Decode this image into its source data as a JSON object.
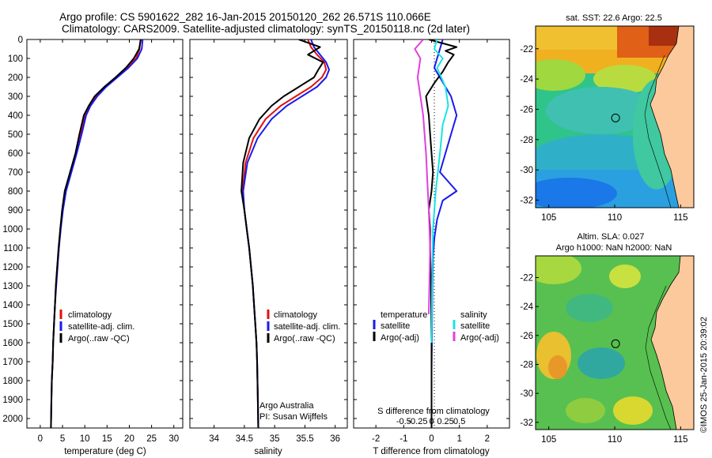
{
  "header": {
    "line1": "Argo profile: CS 5901622_282 16-Jan-2015 20150120_262 26.571S 110.066E",
    "line2": "Climatology: CARS2009. Satellite-adjusted climatology: synTS_20150118.nc (2d later)"
  },
  "footer": {
    "credit_line1": "Argo Australia",
    "credit_line2": "PI: Susan Wijffels",
    "side_stamp": "©IMOS 25-Jan-2015 20:39:02"
  },
  "colors": {
    "climatology": "#e01010",
    "satellite": "#1a1aee",
    "argo": "#000000",
    "salinity_satellite": "#18e4e4",
    "salinity_argo": "#e040e0"
  },
  "chart_data": [
    {
      "type": "line",
      "xlabel": "temperature (deg C)",
      "ylabel": "",
      "xlim": [
        -3,
        32
      ],
      "ylim": [
        2050,
        0
      ],
      "xticks": [
        0,
        5,
        10,
        15,
        20,
        25,
        30
      ],
      "yticks": [
        0,
        100,
        200,
        300,
        400,
        500,
        600,
        700,
        800,
        900,
        1000,
        1100,
        1200,
        1300,
        1400,
        1500,
        1600,
        1700,
        1800,
        1900,
        2000
      ],
      "legend": [
        "climatology",
        "satellite-adj. clim.",
        "Argo(..raw -QC)"
      ],
      "legend_position": "lower-left",
      "series": [
        {
          "name": "climatology",
          "color": "#e01010",
          "x": [
            22.5,
            22.3,
            21.5,
            19.5,
            17.0,
            14.5,
            12.5,
            11.0,
            10.0,
            9.0,
            8.0,
            6.8,
            5.7,
            5.0,
            4.5,
            4.2,
            3.8,
            3.5,
            3.3,
            3.1,
            2.9,
            2.8,
            2.6,
            2.5,
            2.4
          ],
          "y": [
            0,
            50,
            100,
            150,
            200,
            250,
            300,
            350,
            400,
            500,
            600,
            700,
            800,
            900,
            1000,
            1100,
            1200,
            1300,
            1400,
            1500,
            1600,
            1700,
            1800,
            1900,
            2050
          ]
        },
        {
          "name": "satellite-adj. clim.",
          "color": "#1a1aee",
          "x": [
            23.0,
            22.8,
            21.8,
            19.8,
            17.3,
            14.8,
            12.8,
            11.3,
            10.3,
            9.3,
            8.2,
            7.0,
            5.8,
            5.1,
            4.6,
            4.2,
            3.9,
            3.6,
            3.3,
            3.1,
            2.9,
            2.8,
            2.6,
            2.5,
            2.4
          ],
          "y": [
            0,
            50,
            100,
            150,
            200,
            250,
            300,
            350,
            400,
            500,
            600,
            700,
            800,
            900,
            1000,
            1100,
            1200,
            1300,
            1400,
            1500,
            1600,
            1700,
            1800,
            1900,
            2050
          ]
        },
        {
          "name": "Argo(..raw -QC)",
          "color": "#000000",
          "x": [
            22.6,
            22.2,
            21.0,
            19.2,
            16.9,
            14.4,
            12.2,
            10.9,
            9.8,
            8.8,
            7.9,
            6.7,
            5.5,
            4.9,
            4.5,
            4.1,
            3.8,
            3.5,
            3.3,
            3.1,
            2.9,
            2.8,
            2.6,
            2.5,
            2.4
          ],
          "y": [
            0,
            50,
            100,
            150,
            200,
            250,
            300,
            350,
            400,
            500,
            600,
            700,
            800,
            900,
            1000,
            1100,
            1200,
            1300,
            1400,
            1500,
            1600,
            1700,
            1800,
            1900,
            2050
          ]
        }
      ]
    },
    {
      "type": "line",
      "xlabel": "salinity",
      "xlim": [
        33.6,
        36.2
      ],
      "ylim": [
        2050,
        0
      ],
      "xticks": [
        34,
        34.5,
        35,
        35.5,
        36
      ],
      "legend": [
        "climatology",
        "satellite-adj. clim.",
        "Argo(..raw -QC)"
      ],
      "legend_position": "lower-right",
      "series": [
        {
          "name": "climatology",
          "color": "#e01010",
          "x": [
            35.55,
            35.6,
            35.7,
            35.82,
            35.85,
            35.78,
            35.6,
            35.35,
            35.1,
            34.85,
            34.65,
            34.52,
            34.47,
            34.5,
            34.54,
            34.58,
            34.61,
            34.64,
            34.66,
            34.68,
            34.7,
            34.71,
            34.72,
            34.73
          ],
          "y": [
            0,
            40,
            80,
            120,
            160,
            200,
            250,
            300,
            350,
            420,
            520,
            650,
            800,
            900,
            1000,
            1100,
            1200,
            1300,
            1400,
            1500,
            1600,
            1700,
            1850,
            2050
          ]
        },
        {
          "name": "satellite-adj. clim.",
          "color": "#1a1aee",
          "x": [
            35.6,
            35.65,
            35.75,
            35.85,
            35.9,
            35.85,
            35.7,
            35.45,
            35.2,
            34.95,
            34.72,
            34.55,
            34.48,
            34.5,
            34.54,
            34.58,
            34.61,
            34.64,
            34.66,
            34.68,
            34.7,
            34.71,
            34.72,
            34.73
          ],
          "y": [
            0,
            40,
            80,
            120,
            160,
            200,
            250,
            300,
            350,
            420,
            520,
            650,
            800,
            900,
            1000,
            1100,
            1200,
            1300,
            1400,
            1500,
            1600,
            1700,
            1850,
            2050
          ]
        },
        {
          "name": "Argo(..raw -QC)",
          "color": "#000000",
          "x": [
            35.4,
            35.75,
            35.55,
            35.8,
            35.72,
            35.65,
            35.4,
            35.15,
            34.95,
            34.75,
            34.58,
            34.48,
            34.45,
            34.5,
            34.54,
            34.58,
            34.61,
            34.64,
            34.66,
            34.68,
            34.7,
            34.71,
            34.72,
            34.73
          ],
          "y": [
            0,
            40,
            80,
            120,
            160,
            200,
            250,
            300,
            350,
            420,
            520,
            650,
            800,
            900,
            1000,
            1100,
            1200,
            1300,
            1400,
            1500,
            1600,
            1700,
            1850,
            2050
          ]
        }
      ]
    },
    {
      "type": "line",
      "xlabel": "T difference from climatology",
      "top_label": "S difference from climatology",
      "xlim": [
        -2.8,
        2.8
      ],
      "ylim": [
        2050,
        0
      ],
      "xticks": [
        -2,
        -1,
        0,
        1,
        2
      ],
      "top_ticks": [
        {
          "value": -1,
          "label": "-0.5"
        },
        {
          "value": -0.5,
          "label": "-0.25"
        },
        {
          "value": 0,
          "label": "0"
        },
        {
          "value": 0.5,
          "label": "0.25"
        },
        {
          "value": 1,
          "label": "0.5"
        }
      ],
      "legend_groups": {
        "temperature": [
          "satellite",
          "Argo(-adj)"
        ],
        "salinity": [
          "satellite",
          "Argo(-adj)"
        ]
      },
      "legend_headings": [
        "temperature",
        "salinity"
      ],
      "legend_labels": [
        "satellite",
        "Argo(-adj)",
        "satellite",
        "Argo(-adj)"
      ],
      "legend_position": "lower-center",
      "series": [
        {
          "name": "temperature satellite",
          "color": "#1a1aee",
          "x": [
            0.4,
            0.3,
            0.2,
            0.1,
            0.3,
            0.5,
            0.7,
            0.9,
            0.7,
            0.5,
            0.3,
            0.9,
            0.4,
            0.2,
            0.1,
            0.05,
            0.03,
            0.02,
            0.01,
            0.0,
            0.0,
            0.0
          ],
          "y": [
            0,
            50,
            100,
            150,
            200,
            250,
            300,
            400,
            500,
            600,
            700,
            800,
            850,
            950,
            1050,
            1150,
            1300,
            1450,
            1600,
            1750,
            1900,
            2050
          ]
        },
        {
          "name": "temperature Argo(-adj)",
          "color": "#000000",
          "x": [
            -0.1,
            0.9,
            0.5,
            0.8,
            0.6,
            0.4,
            0.1,
            -0.2,
            -0.1,
            -0.05,
            0.0,
            0.05,
            0.0,
            -0.1,
            -0.05,
            -0.05,
            -0.02,
            -0.01,
            0.0,
            0.0,
            0.0,
            0.0
          ],
          "y": [
            0,
            40,
            60,
            80,
            120,
            170,
            230,
            300,
            400,
            500,
            600,
            700,
            800,
            900,
            1000,
            1100,
            1300,
            1450,
            1600,
            1750,
            1900,
            2050
          ]
        },
        {
          "name": "salinity satellite",
          "color": "#18e4e4",
          "x": [
            0.2,
            0.1,
            0.4,
            0.2,
            0.5,
            0.6,
            0.4,
            0.3,
            0.15,
            0.05,
            0.02,
            0.0
          ],
          "y": [
            0,
            50,
            100,
            150,
            250,
            350,
            450,
            600,
            800,
            1000,
            1300,
            1600
          ]
        },
        {
          "name": "salinity Argo(-adj)",
          "color": "#e040e0",
          "x": [
            -0.3,
            -0.6,
            -0.4,
            -0.5,
            -0.4,
            -0.3,
            -0.25,
            -0.2,
            -0.15,
            -0.1,
            -0.05,
            -0.1
          ],
          "y": [
            0,
            50,
            100,
            200,
            300,
            400,
            500,
            600,
            750,
            900,
            1100,
            1450
          ]
        }
      ]
    },
    {
      "type": "heatmap",
      "title": "sat. SST: 22.6 Argo: 22.5",
      "xticks": [
        105,
        110,
        115
      ],
      "yticks": [
        -22,
        -24,
        -26,
        -28,
        -30,
        -32
      ],
      "xlim": [
        104,
        116
      ],
      "ylim": [
        -32.5,
        -20.5
      ],
      "marker": {
        "lon": 110.066,
        "lat": -26.571
      }
    },
    {
      "type": "heatmap",
      "title": "Altim. SLA: 0.027",
      "subtitle": "Argo h1000: NaN h2000: NaN",
      "xticks": [
        105,
        110,
        115
      ],
      "yticks": [
        -22,
        -24,
        -26,
        -28,
        -30,
        -32
      ],
      "xlim": [
        104,
        116
      ],
      "ylim": [
        -32.5,
        -20.5
      ],
      "marker": {
        "lon": 110.066,
        "lat": -26.571
      }
    }
  ]
}
